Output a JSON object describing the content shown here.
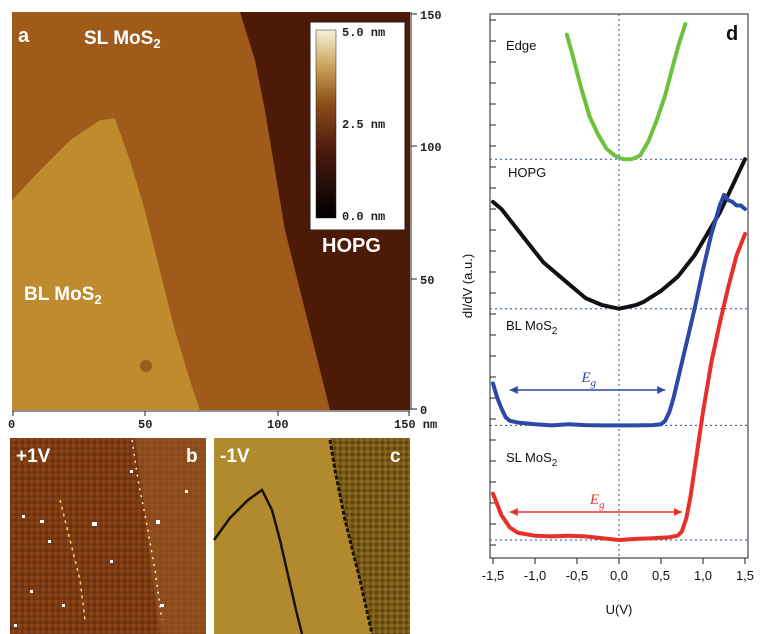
{
  "colors": {
    "edge": "#6cc23c",
    "hopg": "#111111",
    "bl": "#2b4aa8",
    "sl": "#e8302a",
    "eg_bl": "#2b4aa8",
    "eg_sl": "#e8302a",
    "map_low": "#000000",
    "map_mid": "#6a1e12",
    "map_high": "#f4eccc"
  },
  "panel_a": {
    "letter": "a",
    "label_sl": "SL MoS",
    "label_sl_sub": "2",
    "label_bl": "BL MoS",
    "label_bl_sub": "2",
    "label_hopg": "HOPG",
    "colorbar": {
      "ticks": [
        "5.0 nm",
        "2.5 nm",
        "0.0 nm"
      ]
    },
    "right_axis_ticks": [
      "150",
      "100",
      "50",
      "0"
    ],
    "bottom_axis_ticks": [
      "0",
      "50",
      "100",
      "150 nm"
    ]
  },
  "panel_b": {
    "letter": "b",
    "bias": "+1V"
  },
  "panel_c": {
    "letter": "c",
    "bias": "-1V"
  },
  "chart_data": {
    "type": "line",
    "panel_letter": "d",
    "xlabel": "U(V)",
    "ylabel": "dI/dV (a.u.)",
    "xlim": [
      -1.5,
      1.5
    ],
    "x_ticks": [
      "-1,5",
      "-1,0",
      "-0,5",
      "0,0",
      "0,5",
      "1,0",
      "1,5"
    ],
    "y_ticks_shown": false,
    "baseline_positions_fraction_from_bottom": [
      0.0,
      0.32,
      0.64
    ],
    "series": [
      {
        "name": "Edge",
        "label": "Edge",
        "x": [
          -0.62,
          -0.55,
          -0.45,
          -0.35,
          -0.25,
          -0.15,
          -0.05,
          0.05,
          0.15,
          0.25,
          0.35,
          0.45,
          0.55,
          0.65,
          0.72,
          0.79
        ],
        "y": [
          1.42,
          1.36,
          1.27,
          1.19,
          1.14,
          1.1,
          1.08,
          1.07,
          1.07,
          1.08,
          1.12,
          1.18,
          1.25,
          1.34,
          1.4,
          1.45
        ]
      },
      {
        "name": "HOPG",
        "label": "HOPG",
        "x": [
          -1.5,
          -1.4,
          -1.3,
          -1.2,
          -1.1,
          -1.0,
          -0.9,
          -0.8,
          -0.7,
          -0.6,
          -0.5,
          -0.4,
          -0.3,
          -0.2,
          -0.1,
          0.0,
          0.1,
          0.2,
          0.3,
          0.4,
          0.5,
          0.6,
          0.7,
          0.8,
          0.9,
          1.0,
          1.1,
          1.2,
          1.3,
          1.4,
          1.5
        ],
        "y": [
          0.95,
          0.93,
          0.9,
          0.87,
          0.84,
          0.81,
          0.78,
          0.76,
          0.74,
          0.72,
          0.7,
          0.68,
          0.67,
          0.66,
          0.655,
          0.65,
          0.655,
          0.66,
          0.67,
          0.685,
          0.7,
          0.72,
          0.74,
          0.77,
          0.8,
          0.84,
          0.88,
          0.92,
          0.97,
          1.02,
          1.07
        ]
      },
      {
        "name": "BL MoS2",
        "label": "BL MoS",
        "label_sub": "2",
        "x": [
          -1.5,
          -1.45,
          -1.4,
          -1.35,
          -1.3,
          -1.2,
          -1.0,
          -0.8,
          -0.6,
          -0.4,
          -0.2,
          0.0,
          0.2,
          0.4,
          0.5,
          0.55,
          0.6,
          0.65,
          0.7,
          0.75,
          0.8,
          0.9,
          1.0,
          1.1,
          1.2,
          1.25,
          1.3,
          1.35,
          1.4,
          1.45,
          1.5
        ],
        "y": [
          0.44,
          0.4,
          0.37,
          0.345,
          0.335,
          0.33,
          0.325,
          0.322,
          0.325,
          0.323,
          0.322,
          0.322,
          0.322,
          0.323,
          0.325,
          0.335,
          0.36,
          0.4,
          0.45,
          0.5,
          0.55,
          0.65,
          0.76,
          0.86,
          0.94,
          0.97,
          0.955,
          0.95,
          0.94,
          0.94,
          0.93
        ]
      },
      {
        "name": "SL MoS2",
        "label": "SL MoS",
        "label_sub": "2",
        "x": [
          -1.5,
          -1.45,
          -1.4,
          -1.3,
          -1.2,
          -1.0,
          -0.8,
          -0.6,
          -0.4,
          -0.2,
          0.0,
          0.2,
          0.4,
          0.6,
          0.7,
          0.75,
          0.8,
          0.85,
          0.9,
          0.95,
          1.0,
          1.1,
          1.2,
          1.3,
          1.4,
          1.45,
          1.5
        ],
        "y": [
          0.13,
          0.1,
          0.07,
          0.035,
          0.02,
          0.012,
          0.01,
          0.012,
          0.01,
          0.005,
          0.0,
          0.003,
          0.005,
          0.008,
          0.012,
          0.025,
          0.06,
          0.12,
          0.2,
          0.28,
          0.36,
          0.5,
          0.61,
          0.71,
          0.8,
          0.83,
          0.86
        ]
      }
    ],
    "annotations": [
      {
        "text": "E",
        "sub": "g",
        "series": "BL MoS2",
        "x_from": -1.3,
        "x_to": 0.55
      },
      {
        "text": "E",
        "sub": "g",
        "series": "SL MoS2",
        "x_from": -1.3,
        "x_to": 0.75
      }
    ]
  }
}
